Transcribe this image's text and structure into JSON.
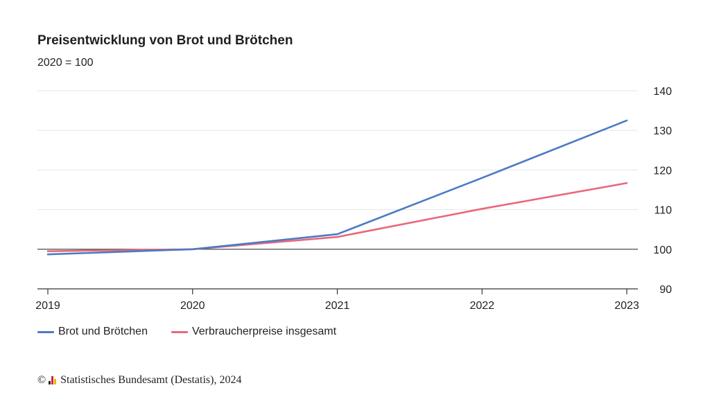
{
  "chart_data": {
    "type": "line",
    "title": "Preisentwicklung von Brot und Brötchen",
    "subtitle": "2020 = 100",
    "x": [
      "2019",
      "2020",
      "2021",
      "2022",
      "2023"
    ],
    "series": [
      {
        "name": "Brot und Brötchen",
        "values": [
          98.7,
          100,
          103.8,
          118.0,
          132.5
        ],
        "color": "#4a7bc4"
      },
      {
        "name": "Verbraucherpreise insgesamt",
        "values": [
          99.5,
          100,
          103.1,
          110.2,
          116.7
        ],
        "color": "#e8687a"
      }
    ],
    "ylim": [
      90,
      140
    ],
    "yticks": [
      "90",
      "100",
      "110",
      "120",
      "130",
      "140"
    ],
    "y_axis_position": "right",
    "reference_line": 100,
    "grid": true,
    "legend_position": "bottom-left"
  },
  "source": {
    "copyright_symbol": "©",
    "text": "Statistisches Bundesamt (Destatis), 2024",
    "logo_colors": [
      "#222222",
      "#d9232e",
      "#f0b400"
    ]
  }
}
